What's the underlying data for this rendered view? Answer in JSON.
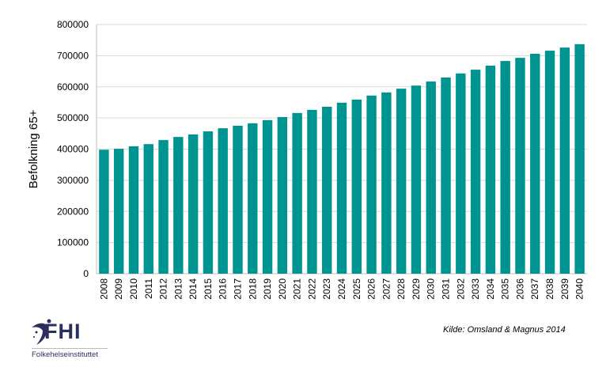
{
  "chart_data": {
    "type": "bar",
    "title": "",
    "xlabel": "",
    "ylabel": "Befolkning 65+",
    "ylim": [
      0,
      800000
    ],
    "yticks": [
      "0",
      "100000",
      "200000",
      "300000",
      "400000",
      "500000",
      "600000",
      "700000",
      "800000"
    ],
    "grid": true,
    "categories": [
      "2008",
      "2009",
      "2010",
      "2011",
      "2012",
      "2013",
      "2014",
      "2015",
      "2016",
      "2017",
      "2018",
      "2019",
      "2020",
      "2021",
      "2022",
      "2023",
      "2024",
      "2025",
      "2026",
      "2027",
      "2028",
      "2029",
      "2030",
      "2031",
      "2032",
      "2033",
      "2034",
      "2035",
      "2036",
      "2037",
      "2038",
      "2039",
      "2040"
    ],
    "values": [
      398000,
      401000,
      409000,
      416000,
      429000,
      439000,
      447000,
      457000,
      467000,
      475000,
      483000,
      493000,
      503000,
      516000,
      526000,
      536000,
      549000,
      559000,
      572000,
      582000,
      594000,
      604000,
      617000,
      630000,
      643000,
      655000,
      668000,
      683000,
      693000,
      706000,
      716000,
      726000,
      737000
    ],
    "color": "#009490"
  },
  "source": "Kilde: Omsland & Magnus 2014",
  "logo": {
    "name": "FHI",
    "subtitle": "Folkehelseinstituttet"
  }
}
